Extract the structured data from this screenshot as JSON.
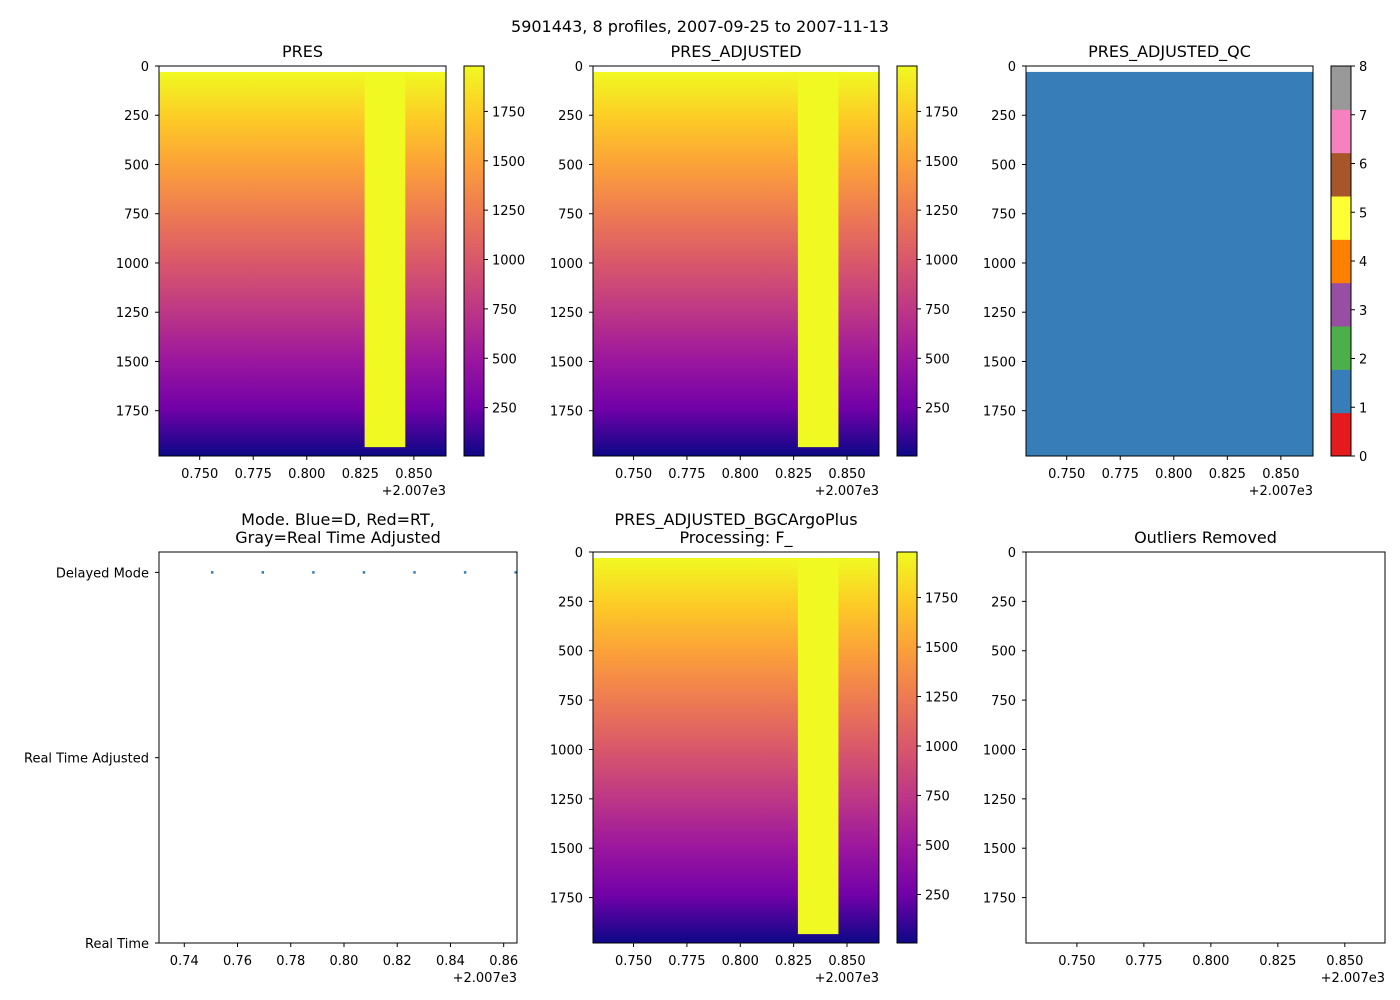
{
  "figure": {
    "suptitle": "5901443, 8 profiles, 2007-09-25 to 2007-11-13"
  },
  "chart_data": [
    {
      "type": "heatmap",
      "title": "PRES",
      "colormap": "plasma_r",
      "x_offset_label": "+2.007e3",
      "xlim": [
        2007.731,
        2007.865
      ],
      "ylim": [
        1980,
        0
      ],
      "xticks": [
        {
          "v": 2007.75,
          "label": "0.750"
        },
        {
          "v": 2007.775,
          "label": "0.775"
        },
        {
          "v": 2007.8,
          "label": "0.800"
        },
        {
          "v": 2007.825,
          "label": "0.825"
        },
        {
          "v": 2007.85,
          "label": "0.850"
        }
      ],
      "yticks": [
        0,
        250,
        500,
        750,
        1000,
        1250,
        1500,
        1750
      ],
      "colorbar": {
        "range": [
          5,
          1980
        ],
        "ticks": [
          250,
          500,
          750,
          1000,
          1250,
          1500,
          1750
        ]
      },
      "data_top": 30,
      "band": {
        "x": [
          2007.827,
          2007.846
        ],
        "pressure_max": 1935
      }
    },
    {
      "type": "heatmap",
      "title": "PRES_ADJUSTED",
      "colormap": "plasma_r",
      "x_offset_label": "+2.007e3",
      "xlim": [
        2007.731,
        2007.865
      ],
      "ylim": [
        1980,
        0
      ],
      "xticks": [
        {
          "v": 2007.75,
          "label": "0.750"
        },
        {
          "v": 2007.775,
          "label": "0.775"
        },
        {
          "v": 2007.8,
          "label": "0.800"
        },
        {
          "v": 2007.825,
          "label": "0.825"
        },
        {
          "v": 2007.85,
          "label": "0.850"
        }
      ],
      "yticks": [
        0,
        250,
        500,
        750,
        1000,
        1250,
        1500,
        1750
      ],
      "colorbar": {
        "range": [
          5,
          1980
        ],
        "ticks": [
          250,
          500,
          750,
          1000,
          1250,
          1500,
          1750
        ]
      },
      "data_top": 30,
      "band": {
        "x": [
          2007.827,
          2007.846
        ],
        "pressure_max": 1935
      }
    },
    {
      "type": "heatmap",
      "title": "PRES_ADJUSTED_QC",
      "colormap": "qc_flags",
      "x_offset_label": "+2.007e3",
      "xlim": [
        2007.731,
        2007.865
      ],
      "ylim": [
        1980,
        0
      ],
      "xticks": [
        {
          "v": 2007.75,
          "label": "0.750"
        },
        {
          "v": 2007.775,
          "label": "0.775"
        },
        {
          "v": 2007.8,
          "label": "0.800"
        },
        {
          "v": 2007.825,
          "label": "0.825"
        },
        {
          "v": 2007.85,
          "label": "0.850"
        }
      ],
      "yticks": [
        0,
        250,
        500,
        750,
        1000,
        1250,
        1500,
        1750
      ],
      "data_top": 30,
      "fill_flag": 1,
      "colorbar": {
        "range": [
          0,
          8
        ],
        "ticks": [
          0,
          1,
          2,
          3,
          4,
          5,
          6,
          7,
          8
        ],
        "flag_colors": [
          "#e41a1c",
          "#377eb8",
          "#4daf4a",
          "#984ea3",
          "#ff7f00",
          "#ffff33",
          "#a65628",
          "#f781bf",
          "#999999"
        ]
      }
    },
    {
      "type": "scatter",
      "title_lines": [
        "Mode. Blue=D, Red=RT,",
        "Gray=Real Time Adjusted"
      ],
      "x_offset_label": "+2.007e3",
      "xlim": [
        2007.7305,
        2007.865
      ],
      "xticks": [
        {
          "v": 2007.74,
          "label": "0.74"
        },
        {
          "v": 2007.76,
          "label": "0.76"
        },
        {
          "v": 2007.78,
          "label": "0.78"
        },
        {
          "v": 2007.8,
          "label": "0.80"
        },
        {
          "v": 2007.82,
          "label": "0.82"
        },
        {
          "v": 2007.84,
          "label": "0.84"
        },
        {
          "v": 2007.86,
          "label": "0.86"
        }
      ],
      "ycategories": [
        "Real Time",
        "Real Time Adjusted",
        "Delayed Mode"
      ],
      "ylim": [
        0,
        2.11
      ],
      "point_color": "#1f77b4",
      "points": [
        {
          "x": 2007.7505,
          "y": 2
        },
        {
          "x": 2007.7695,
          "y": 2
        },
        {
          "x": 2007.7885,
          "y": 2
        },
        {
          "x": 2007.8075,
          "y": 2
        },
        {
          "x": 2007.8265,
          "y": 2
        },
        {
          "x": 2007.8455,
          "y": 2
        },
        {
          "x": 2007.8645,
          "y": 2
        }
      ]
    },
    {
      "type": "heatmap",
      "title_lines": [
        "PRES_ADJUSTED_BGCArgoPlus",
        "Processing: F_"
      ],
      "colormap": "plasma_r",
      "x_offset_label": "+2.007e3",
      "xlim": [
        2007.731,
        2007.865
      ],
      "ylim": [
        1980,
        0
      ],
      "xticks": [
        {
          "v": 2007.75,
          "label": "0.750"
        },
        {
          "v": 2007.775,
          "label": "0.775"
        },
        {
          "v": 2007.8,
          "label": "0.800"
        },
        {
          "v": 2007.825,
          "label": "0.825"
        },
        {
          "v": 2007.85,
          "label": "0.850"
        }
      ],
      "yticks": [
        0,
        250,
        500,
        750,
        1000,
        1250,
        1500,
        1750
      ],
      "colorbar": {
        "range": [
          5,
          1980
        ],
        "ticks": [
          250,
          500,
          750,
          1000,
          1250,
          1500,
          1750
        ]
      },
      "data_top": 30,
      "band": {
        "x": [
          2007.827,
          2007.846
        ],
        "pressure_max": 1935
      }
    },
    {
      "type": "scatter",
      "title": "Outliers Removed",
      "x_offset_label": "+2.007e3",
      "xlim": [
        2007.731,
        2007.865
      ],
      "ylim": [
        1980,
        0
      ],
      "xticks": [
        {
          "v": 2007.75,
          "label": "0.750"
        },
        {
          "v": 2007.775,
          "label": "0.775"
        },
        {
          "v": 2007.8,
          "label": "0.800"
        },
        {
          "v": 2007.825,
          "label": "0.825"
        },
        {
          "v": 2007.85,
          "label": "0.850"
        }
      ],
      "yticks": [
        0,
        250,
        500,
        750,
        1000,
        1250,
        1500,
        1750
      ],
      "points": []
    }
  ]
}
